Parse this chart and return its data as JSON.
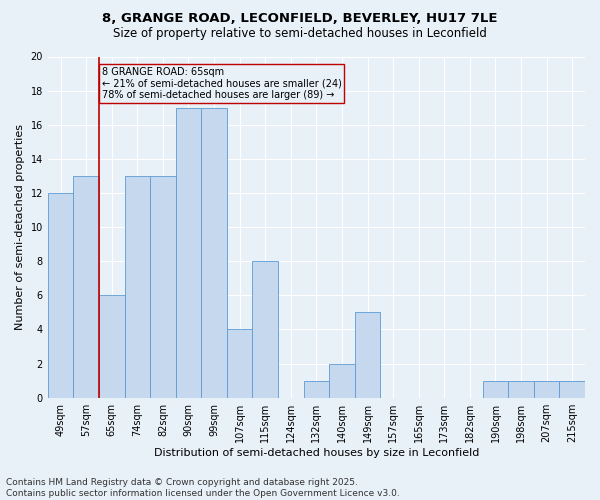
{
  "title": "8, GRANGE ROAD, LECONFIELD, BEVERLEY, HU17 7LE",
  "subtitle": "Size of property relative to semi-detached houses in Leconfield",
  "xlabel": "Distribution of semi-detached houses by size in Leconfield",
  "ylabel": "Number of semi-detached properties",
  "categories": [
    "49sqm",
    "57sqm",
    "65sqm",
    "74sqm",
    "82sqm",
    "90sqm",
    "99sqm",
    "107sqm",
    "115sqm",
    "124sqm",
    "132sqm",
    "140sqm",
    "149sqm",
    "157sqm",
    "165sqm",
    "173sqm",
    "182sqm",
    "190sqm",
    "198sqm",
    "207sqm",
    "215sqm"
  ],
  "values": [
    12,
    13,
    6,
    13,
    13,
    17,
    17,
    4,
    8,
    0,
    1,
    2,
    5,
    0,
    0,
    0,
    0,
    1,
    1,
    1,
    1
  ],
  "bar_color": "#c5d8ed",
  "bar_edge_color": "#5b9bd5",
  "subject_index": 2,
  "subject_label": "8 GRANGE ROAD: 65sqm",
  "annotation_line1": "← 21% of semi-detached houses are smaller (24)",
  "annotation_line2": "78% of semi-detached houses are larger (89) →",
  "vline_color": "#c00000",
  "box_edge_color": "#c00000",
  "ylim": [
    0,
    20
  ],
  "yticks": [
    0,
    2,
    4,
    6,
    8,
    10,
    12,
    14,
    16,
    18,
    20
  ],
  "footnote_line1": "Contains HM Land Registry data © Crown copyright and database right 2025.",
  "footnote_line2": "Contains public sector information licensed under the Open Government Licence v3.0.",
  "background_color": "#e8f0f8",
  "grid_color": "#ffffff",
  "title_fontsize": 9.5,
  "subtitle_fontsize": 8.5,
  "axis_label_fontsize": 8,
  "tick_fontsize": 7,
  "annotation_fontsize": 7,
  "footnote_fontsize": 6.5
}
